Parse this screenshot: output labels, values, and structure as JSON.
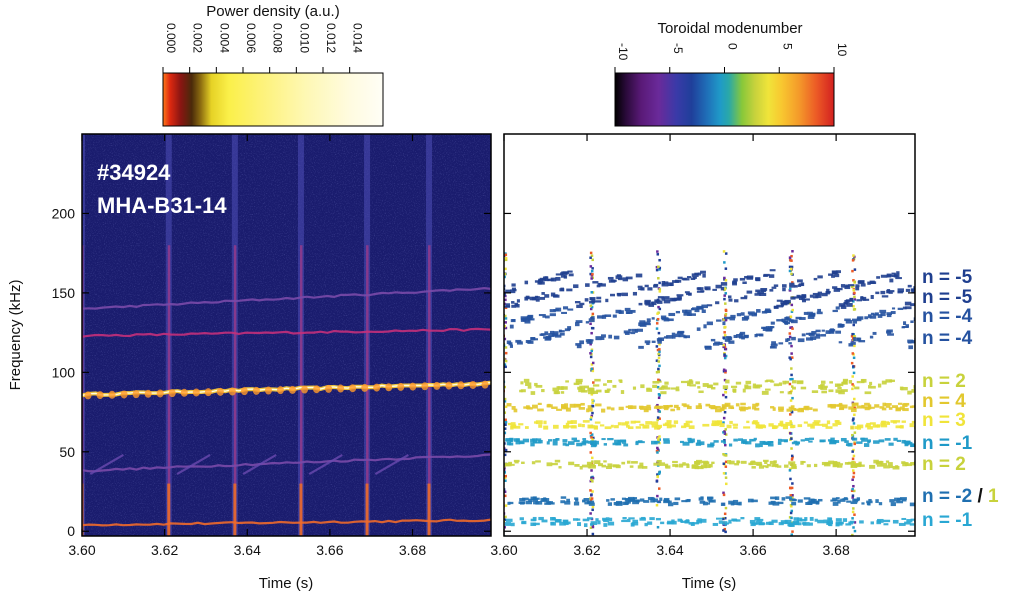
{
  "colorbars": {
    "power": {
      "title": "Power density (a.u.)",
      "ticks": [
        "0.000",
        "0.002",
        "0.004",
        "0.006",
        "0.008",
        "0.010",
        "0.012",
        "0.014"
      ],
      "range": [
        0,
        0.0165
      ]
    },
    "mode": {
      "title": "Toroidal modenumber",
      "ticks": [
        "-10",
        "-5",
        "0",
        "5",
        "10"
      ],
      "range": [
        -10,
        10
      ]
    }
  },
  "panels": {
    "spectrogram": {
      "shot": "#34924",
      "probe": "MHA-B31-14",
      "background": "#1a1c6e"
    },
    "modes": {
      "background": "#ffffff"
    }
  },
  "axes": {
    "xlabel": "Time (s)",
    "ylabel": "Frequency (kHz)",
    "xticks": [
      "3.60",
      "3.62",
      "3.64",
      "3.66",
      "3.68"
    ],
    "yticks": [
      "0",
      "50",
      "100",
      "150",
      "200"
    ],
    "xlim": [
      3.6,
      3.699
    ],
    "ylim": [
      -3,
      250
    ]
  },
  "chart_data": [
    {
      "type": "heatmap",
      "description": "Magnetic spectrogram (power density)",
      "xlabel": "Time (s)",
      "ylabel": "Frequency (kHz)",
      "xlim": [
        3.6,
        3.699
      ],
      "ylim": [
        -3,
        250
      ],
      "elm_crash_times": [
        3.6,
        3.621,
        3.637,
        3.653,
        3.669,
        3.684
      ],
      "series": [
        {
          "name": "n = 2",
          "f_start": 86,
          "f_end": 93,
          "peak_power": 0.014
        },
        {
          "name": "n = -1",
          "f_start": 4,
          "f_end": 7,
          "peak_power": 0.008
        },
        {
          "name": "n = -4",
          "f_start": 123,
          "f_end": 127,
          "peak_power": 0.004
        },
        {
          "name": "n = -5",
          "f_start": 140,
          "f_end": 153,
          "peak_power": 0.003
        },
        {
          "name": "n = 2",
          "f_start": 38,
          "f_end": 48,
          "peak_power": 0.003
        }
      ]
    },
    {
      "type": "scatter",
      "description": "Toroidal mode number analysis",
      "xlabel": "Time (s)",
      "xlim": [
        3.6,
        3.699
      ],
      "ylim": [
        -3,
        250
      ],
      "modes": [
        {
          "label": "n = -5",
          "frequency": 158,
          "color": "#1f3f8f"
        },
        {
          "label": "n = -5",
          "frequency": 148,
          "color": "#1f3f8f"
        },
        {
          "label": "n = -4",
          "frequency": 136,
          "color": "#2552a0"
        },
        {
          "label": "n = -4",
          "frequency": 123,
          "color": "#2552a0"
        },
        {
          "label": "n =  2",
          "frequency": 92,
          "color": "#c8d23c"
        },
        {
          "label": "n =  4",
          "frequency": 79,
          "color": "#e2c82e"
        },
        {
          "label": "n =  3",
          "frequency": 68,
          "color": "#f0e43a"
        },
        {
          "label": "n = -1",
          "frequency": 57,
          "color": "#1f9ac8"
        },
        {
          "label": "n =  2",
          "frequency": 43,
          "color": "#c8d23c"
        },
        {
          "label": "n = -2 / 1",
          "frequency": 20,
          "color": "#1f6fb0"
        },
        {
          "label": "n = -1",
          "frequency": 7,
          "color": "#29a7d3"
        }
      ]
    }
  ]
}
